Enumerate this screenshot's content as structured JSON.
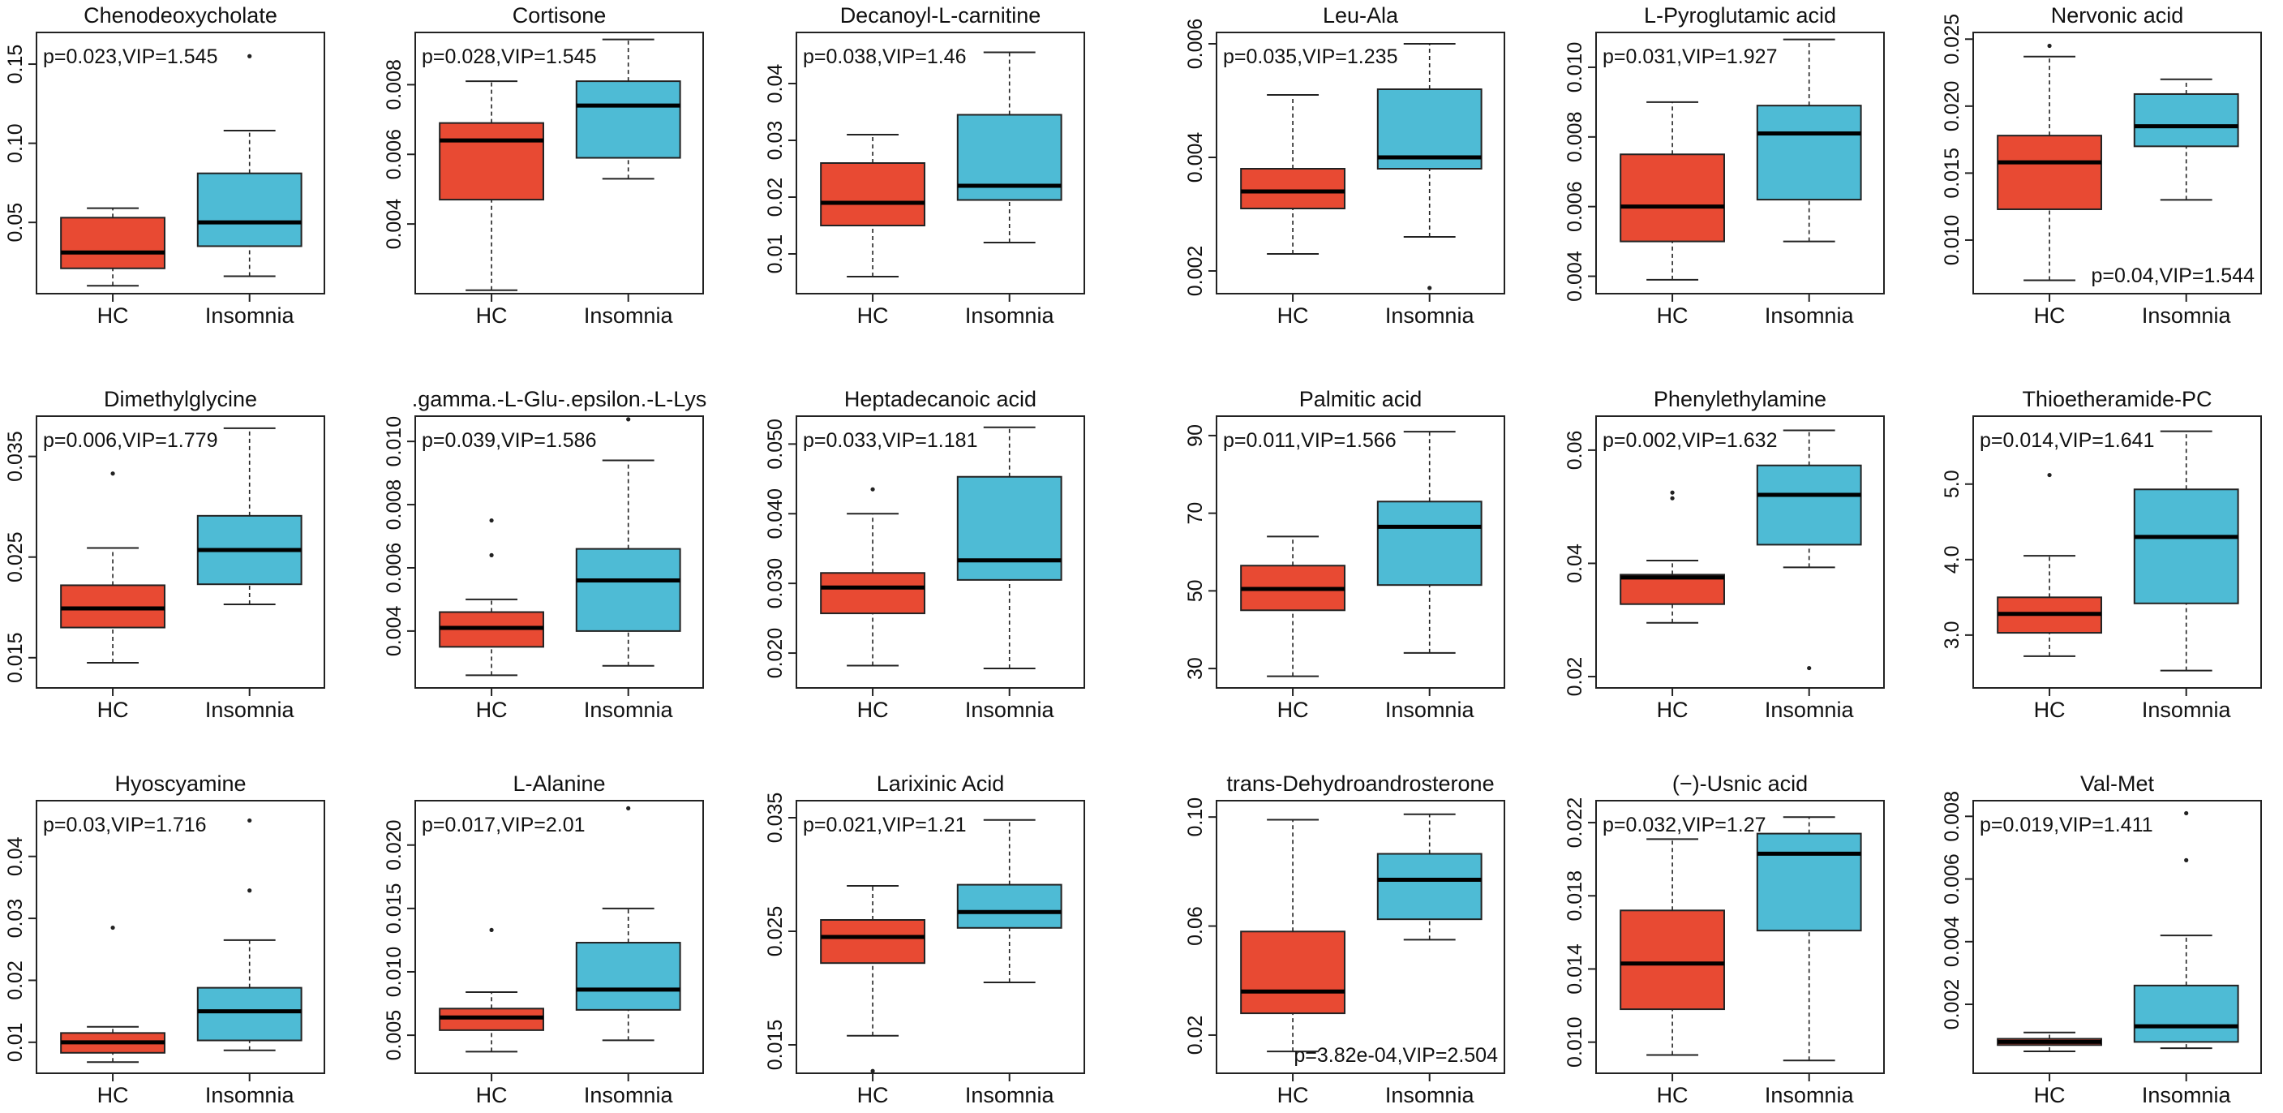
{
  "colors": {
    "hc": "#E84A33",
    "insomnia": "#4EBBD5",
    "line": "#222222"
  },
  "chart_data": [
    {
      "type": "boxplot",
      "title": "Chenodeoxycholate",
      "annotation": "p=0.023,VIP=1.545",
      "annotation_pos": "top-left",
      "categories": [
        "HC",
        "Insomnia"
      ],
      "ylim": [
        0.005,
        0.17
      ],
      "yticks": [
        0.05,
        0.1,
        0.15
      ],
      "ytick_labels": [
        "0.05",
        "0.10",
        "0.15"
      ],
      "groups": [
        {
          "name": "HC",
          "whisker_low": 0.01,
          "q1": 0.021,
          "median": 0.031,
          "q3": 0.053,
          "whisker_high": 0.059,
          "outliers": []
        },
        {
          "name": "Insomnia",
          "whisker_low": 0.016,
          "q1": 0.035,
          "median": 0.05,
          "q3": 0.081,
          "whisker_high": 0.108,
          "outliers": [
            0.155
          ]
        }
      ]
    },
    {
      "type": "boxplot",
      "title": "Cortisone",
      "annotation": "p=0.028,VIP=1.545",
      "annotation_pos": "top-left",
      "categories": [
        "HC",
        "Insomnia"
      ],
      "ylim": [
        0.002,
        0.0095
      ],
      "yticks": [
        0.004,
        0.006,
        0.008
      ],
      "ytick_labels": [
        "0.004",
        "0.006",
        "0.008"
      ],
      "groups": [
        {
          "name": "HC",
          "whisker_low": 0.0021,
          "q1": 0.0047,
          "median": 0.0064,
          "q3": 0.0069,
          "whisker_high": 0.0081,
          "outliers": []
        },
        {
          "name": "Insomnia",
          "whisker_low": 0.0053,
          "q1": 0.0059,
          "median": 0.0074,
          "q3": 0.0081,
          "whisker_high": 0.0093,
          "outliers": []
        }
      ]
    },
    {
      "type": "boxplot",
      "title": "Decanoyl-L-carnitine",
      "annotation": "p=0.038,VIP=1.46",
      "annotation_pos": "top-left",
      "categories": [
        "HC",
        "Insomnia"
      ],
      "ylim": [
        0.003,
        0.049
      ],
      "yticks": [
        0.01,
        0.02,
        0.03,
        0.04
      ],
      "ytick_labels": [
        "0.01",
        "0.02",
        "0.03",
        "0.04"
      ],
      "groups": [
        {
          "name": "HC",
          "whisker_low": 0.006,
          "q1": 0.015,
          "median": 0.019,
          "q3": 0.026,
          "whisker_high": 0.031,
          "outliers": []
        },
        {
          "name": "Insomnia",
          "whisker_low": 0.012,
          "q1": 0.0195,
          "median": 0.022,
          "q3": 0.0345,
          "whisker_high": 0.0455,
          "outliers": []
        }
      ]
    },
    {
      "type": "boxplot",
      "title": "Leu-Ala",
      "annotation": "p=0.035,VIP=1.235",
      "annotation_pos": "top-left",
      "categories": [
        "HC",
        "Insomnia"
      ],
      "ylim": [
        0.0016,
        0.0062
      ],
      "yticks": [
        0.002,
        0.004,
        0.006
      ],
      "ytick_labels": [
        "0.002",
        "0.004",
        "0.006"
      ],
      "groups": [
        {
          "name": "HC",
          "whisker_low": 0.0023,
          "q1": 0.0031,
          "median": 0.0034,
          "q3": 0.0038,
          "whisker_high": 0.0051,
          "outliers": []
        },
        {
          "name": "Insomnia",
          "whisker_low": 0.0026,
          "q1": 0.0038,
          "median": 0.004,
          "q3": 0.0052,
          "whisker_high": 0.006,
          "outliers": [
            0.0017
          ]
        }
      ]
    },
    {
      "type": "boxplot",
      "title": "L-Pyroglutamic acid",
      "annotation": "p=0.031,VIP=1.927",
      "annotation_pos": "top-left",
      "categories": [
        "HC",
        "Insomnia"
      ],
      "ylim": [
        0.0035,
        0.011
      ],
      "yticks": [
        0.004,
        0.006,
        0.008,
        0.01
      ],
      "ytick_labels": [
        "0.004",
        "0.006",
        "0.008",
        "0.010"
      ],
      "groups": [
        {
          "name": "HC",
          "whisker_low": 0.0039,
          "q1": 0.005,
          "median": 0.006,
          "q3": 0.0075,
          "whisker_high": 0.009,
          "outliers": []
        },
        {
          "name": "Insomnia",
          "whisker_low": 0.005,
          "q1": 0.0062,
          "median": 0.0081,
          "q3": 0.0089,
          "whisker_high": 0.0108,
          "outliers": []
        }
      ]
    },
    {
      "type": "boxplot",
      "title": "Nervonic acid",
      "annotation": "p=0.04,VIP=1.544",
      "annotation_pos": "bottom-right",
      "categories": [
        "HC",
        "Insomnia"
      ],
      "ylim": [
        0.006,
        0.0255
      ],
      "yticks": [
        0.01,
        0.015,
        0.02,
        0.025
      ],
      "ytick_labels": [
        "0.010",
        "0.015",
        "0.020",
        "0.025"
      ],
      "groups": [
        {
          "name": "HC",
          "whisker_low": 0.007,
          "q1": 0.0123,
          "median": 0.0158,
          "q3": 0.0178,
          "whisker_high": 0.0237,
          "outliers": [
            0.0245
          ]
        },
        {
          "name": "Insomnia",
          "whisker_low": 0.013,
          "q1": 0.017,
          "median": 0.0185,
          "q3": 0.0209,
          "whisker_high": 0.022,
          "outliers": []
        }
      ]
    },
    {
      "type": "boxplot",
      "title": "Dimethylglycine",
      "annotation": "p=0.006,VIP=1.779",
      "annotation_pos": "top-left",
      "categories": [
        "HC",
        "Insomnia"
      ],
      "ylim": [
        0.012,
        0.039
      ],
      "yticks": [
        0.015,
        0.025,
        0.035
      ],
      "ytick_labels": [
        "0.015",
        "0.025",
        "0.035"
      ],
      "groups": [
        {
          "name": "HC",
          "whisker_low": 0.0145,
          "q1": 0.018,
          "median": 0.0199,
          "q3": 0.0222,
          "whisker_high": 0.0259,
          "outliers": [
            0.0333
          ]
        },
        {
          "name": "Insomnia",
          "whisker_low": 0.0203,
          "q1": 0.0223,
          "median": 0.0257,
          "q3": 0.0291,
          "whisker_high": 0.0378,
          "outliers": []
        }
      ]
    },
    {
      "type": "boxplot",
      "title": ".gamma.-L-Glu-.epsilon.-L-Lys",
      "annotation": "p=0.039,VIP=1.586",
      "annotation_pos": "top-left",
      "categories": [
        "HC",
        "Insomnia"
      ],
      "ylim": [
        0.0022,
        0.0108
      ],
      "yticks": [
        0.004,
        0.006,
        0.008,
        0.01
      ],
      "ytick_labels": [
        "0.004",
        "0.006",
        "0.008",
        "0.010"
      ],
      "groups": [
        {
          "name": "HC",
          "whisker_low": 0.0026,
          "q1": 0.0035,
          "median": 0.0041,
          "q3": 0.0046,
          "whisker_high": 0.005,
          "outliers": [
            0.0064,
            0.0075
          ]
        },
        {
          "name": "Insomnia",
          "whisker_low": 0.0029,
          "q1": 0.004,
          "median": 0.0056,
          "q3": 0.0066,
          "whisker_high": 0.0094,
          "outliers": [
            0.0107
          ]
        }
      ]
    },
    {
      "type": "boxplot",
      "title": "Heptadecanoic acid",
      "annotation": "p=0.033,VIP=1.181",
      "annotation_pos": "top-left",
      "categories": [
        "HC",
        "Insomnia"
      ],
      "ylim": [
        0.015,
        0.054
      ],
      "yticks": [
        0.02,
        0.03,
        0.04,
        0.05
      ],
      "ytick_labels": [
        "0.020",
        "0.030",
        "0.040",
        "0.050"
      ],
      "groups": [
        {
          "name": "HC",
          "whisker_low": 0.0182,
          "q1": 0.0257,
          "median": 0.0294,
          "q3": 0.0315,
          "whisker_high": 0.04,
          "outliers": [
            0.0435
          ]
        },
        {
          "name": "Insomnia",
          "whisker_low": 0.0178,
          "q1": 0.0305,
          "median": 0.0333,
          "q3": 0.0453,
          "whisker_high": 0.0524,
          "outliers": []
        }
      ]
    },
    {
      "type": "boxplot",
      "title": "Palmitic acid",
      "annotation": "p=0.011,VIP=1.566",
      "annotation_pos": "top-left",
      "categories": [
        "HC",
        "Insomnia"
      ],
      "ylim": [
        25,
        95
      ],
      "yticks": [
        30,
        50,
        70,
        90
      ],
      "ytick_labels": [
        "30",
        "50",
        "70",
        "90"
      ],
      "groups": [
        {
          "name": "HC",
          "whisker_low": 28,
          "q1": 45,
          "median": 50.5,
          "q3": 56.5,
          "whisker_high": 64,
          "outliers": []
        },
        {
          "name": "Insomnia",
          "whisker_low": 34,
          "q1": 51.5,
          "median": 66.5,
          "q3": 73,
          "whisker_high": 91,
          "outliers": []
        }
      ]
    },
    {
      "type": "boxplot",
      "title": "Phenylethylamine",
      "annotation": "p=0.002,VIP=1.632",
      "annotation_pos": "top-left",
      "categories": [
        "HC",
        "Insomnia"
      ],
      "ylim": [
        0.018,
        0.066
      ],
      "yticks": [
        0.02,
        0.04,
        0.06
      ],
      "ytick_labels": [
        "0.02",
        "0.04",
        "0.06"
      ],
      "groups": [
        {
          "name": "HC",
          "whisker_low": 0.0295,
          "q1": 0.0328,
          "median": 0.0375,
          "q3": 0.038,
          "whisker_high": 0.0405,
          "outliers": [
            0.0515,
            0.0525
          ]
        },
        {
          "name": "Insomnia",
          "whisker_low": 0.0393,
          "q1": 0.0433,
          "median": 0.0521,
          "q3": 0.0573,
          "whisker_high": 0.0635,
          "outliers": [
            0.0215
          ]
        }
      ]
    },
    {
      "type": "boxplot",
      "title": "Thioetheramide-PC",
      "annotation": "p=0.014,VIP=1.641",
      "annotation_pos": "top-left",
      "categories": [
        "HC",
        "Insomnia"
      ],
      "ylim": [
        2.3,
        5.9
      ],
      "yticks": [
        3.0,
        4.0,
        5.0
      ],
      "ytick_labels": [
        "3.0",
        "4.0",
        "5.0"
      ],
      "groups": [
        {
          "name": "HC",
          "whisker_low": 2.72,
          "q1": 3.03,
          "median": 3.28,
          "q3": 3.5,
          "whisker_high": 4.05,
          "outliers": [
            5.12
          ]
        },
        {
          "name": "Insomnia",
          "whisker_low": 2.53,
          "q1": 3.42,
          "median": 4.3,
          "q3": 4.93,
          "whisker_high": 5.7,
          "outliers": []
        }
      ]
    },
    {
      "type": "boxplot",
      "title": "Hyoscyamine",
      "annotation": "p=0.03,VIP=1.716",
      "annotation_pos": "top-left",
      "categories": [
        "HC",
        "Insomnia"
      ],
      "ylim": [
        0.005,
        0.049
      ],
      "yticks": [
        0.01,
        0.02,
        0.03,
        0.04
      ],
      "ytick_labels": [
        "0.01",
        "0.02",
        "0.03",
        "0.04"
      ],
      "groups": [
        {
          "name": "HC",
          "whisker_low": 0.0068,
          "q1": 0.0083,
          "median": 0.01,
          "q3": 0.0115,
          "whisker_high": 0.0125,
          "outliers": [
            0.0285
          ]
        },
        {
          "name": "Insomnia",
          "whisker_low": 0.0087,
          "q1": 0.0103,
          "median": 0.015,
          "q3": 0.0188,
          "whisker_high": 0.0265,
          "outliers": [
            0.0345,
            0.0458
          ]
        }
      ]
    },
    {
      "type": "boxplot",
      "title": "L-Alanine",
      "annotation": "p=0.017,VIP=2.01",
      "annotation_pos": "top-left",
      "categories": [
        "HC",
        "Insomnia"
      ],
      "ylim": [
        0.002,
        0.0235
      ],
      "yticks": [
        0.005,
        0.01,
        0.015,
        0.02
      ],
      "ytick_labels": [
        "0.005",
        "0.010",
        "0.015",
        "0.020"
      ],
      "groups": [
        {
          "name": "HC",
          "whisker_low": 0.0037,
          "q1": 0.0054,
          "median": 0.0064,
          "q3": 0.0071,
          "whisker_high": 0.0084,
          "outliers": [
            0.0133
          ]
        },
        {
          "name": "Insomnia",
          "whisker_low": 0.0046,
          "q1": 0.007,
          "median": 0.0086,
          "q3": 0.0123,
          "whisker_high": 0.015,
          "outliers": [
            0.0229
          ]
        }
      ]
    },
    {
      "type": "boxplot",
      "title": "Larixinic Acid",
      "annotation": "p=0.021,VIP=1.21",
      "annotation_pos": "top-left",
      "categories": [
        "HC",
        "Insomnia"
      ],
      "ylim": [
        0.0125,
        0.0365
      ],
      "yticks": [
        0.015,
        0.025,
        0.035
      ],
      "ytick_labels": [
        "0.015",
        "0.025",
        "0.035"
      ],
      "groups": [
        {
          "name": "HC",
          "whisker_low": 0.0158,
          "q1": 0.0222,
          "median": 0.0245,
          "q3": 0.026,
          "whisker_high": 0.029,
          "outliers": [
            0.0127
          ]
        },
        {
          "name": "Insomnia",
          "whisker_low": 0.0205,
          "q1": 0.0253,
          "median": 0.0267,
          "q3": 0.0291,
          "whisker_high": 0.0348,
          "outliers": []
        }
      ]
    },
    {
      "type": "boxplot",
      "title": "trans-Dehydroandrosterone",
      "annotation": "p=3.82e-04,VIP=2.504",
      "annotation_pos": "bottom-right",
      "categories": [
        "HC",
        "Insomnia"
      ],
      "ylim": [
        0.006,
        0.106
      ],
      "yticks": [
        0.02,
        0.06,
        0.1
      ],
      "ytick_labels": [
        "0.02",
        "0.06",
        "0.10"
      ],
      "groups": [
        {
          "name": "HC",
          "whisker_low": 0.014,
          "q1": 0.028,
          "median": 0.036,
          "q3": 0.058,
          "whisker_high": 0.099,
          "outliers": []
        },
        {
          "name": "Insomnia",
          "whisker_low": 0.055,
          "q1": 0.0625,
          "median": 0.077,
          "q3": 0.0865,
          "whisker_high": 0.101,
          "outliers": []
        }
      ]
    },
    {
      "type": "boxplot",
      "title": "(−)-Usnic acid",
      "annotation": "p=0.032,VIP=1.27",
      "annotation_pos": "top-left",
      "categories": [
        "HC",
        "Insomnia"
      ],
      "ylim": [
        0.0083,
        0.0232
      ],
      "yticks": [
        0.01,
        0.014,
        0.018,
        0.022
      ],
      "ytick_labels": [
        "0.010",
        "0.014",
        "0.018",
        "0.022"
      ],
      "groups": [
        {
          "name": "HC",
          "whisker_low": 0.0093,
          "q1": 0.0118,
          "median": 0.0143,
          "q3": 0.0172,
          "whisker_high": 0.0211,
          "outliers": []
        },
        {
          "name": "Insomnia",
          "whisker_low": 0.009,
          "q1": 0.0161,
          "median": 0.0203,
          "q3": 0.0214,
          "whisker_high": 0.0223,
          "outliers": []
        }
      ]
    },
    {
      "type": "boxplot",
      "title": "Val-Met",
      "annotation": "p=0.019,VIP=1.411",
      "annotation_pos": "top-left",
      "categories": [
        "HC",
        "Insomnia"
      ],
      "ylim": [
        -0.0002,
        0.0085
      ],
      "yticks": [
        0.002,
        0.004,
        0.006,
        0.008
      ],
      "ytick_labels": [
        "0.002",
        "0.004",
        "0.006",
        "0.008"
      ],
      "groups": [
        {
          "name": "HC",
          "whisker_low": 0.0005,
          "q1": 0.0007,
          "median": 0.0008,
          "q3": 0.0009,
          "whisker_high": 0.0011,
          "outliers": []
        },
        {
          "name": "Insomnia",
          "whisker_low": 0.0006,
          "q1": 0.0008,
          "median": 0.0013,
          "q3": 0.0026,
          "whisker_high": 0.0042,
          "outliers": [
            0.0066,
            0.0081
          ]
        }
      ]
    }
  ]
}
